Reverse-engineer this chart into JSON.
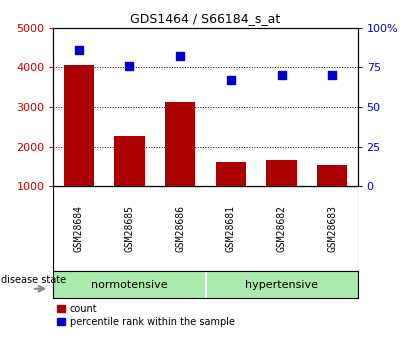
{
  "title": "GDS1464 / S66184_s_at",
  "samples": [
    "GSM28684",
    "GSM28685",
    "GSM28686",
    "GSM28681",
    "GSM28682",
    "GSM28683"
  ],
  "counts": [
    4050,
    2270,
    3120,
    1620,
    1660,
    1540
  ],
  "percentiles": [
    86,
    76,
    82,
    67,
    70,
    70
  ],
  "bar_color": "#AA0000",
  "scatter_color": "#0000CC",
  "left_ylim": [
    1000,
    5000
  ],
  "left_yticks": [
    1000,
    2000,
    3000,
    4000,
    5000
  ],
  "right_ylim": [
    0,
    100
  ],
  "right_yticks": [
    0,
    25,
    50,
    75,
    100
  ],
  "right_yticklabels": [
    "0",
    "25",
    "50",
    "75",
    "100%"
  ],
  "tick_color_left": "#CC0000",
  "tick_color_right": "#0000CC",
  "panel_bg": "#C8C8C8",
  "normo_color": "#AAEAAA",
  "hyper_color": "#AAEAAA",
  "legend_count_label": "count",
  "legend_pct_label": "percentile rank within the sample",
  "disease_state_label": "disease state"
}
